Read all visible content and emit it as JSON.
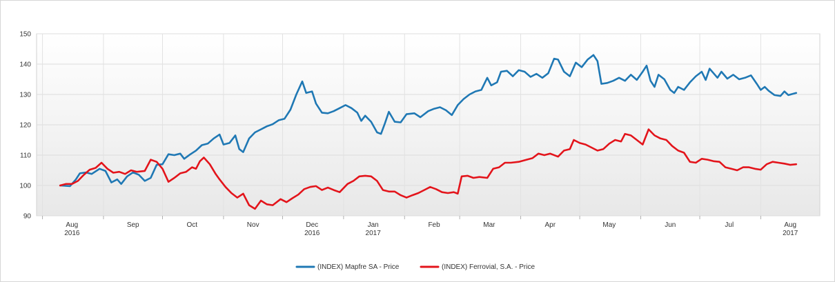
{
  "chart_data": {
    "type": "line",
    "title": "",
    "xlabel": "",
    "ylabel": "",
    "ylim": [
      90,
      150
    ],
    "y_ticks": [
      90,
      100,
      110,
      120,
      130,
      140,
      150
    ],
    "x_range": [
      "2016-07-29",
      "2017-08-31"
    ],
    "x_ticks": [
      {
        "date": "2016-08-01",
        "label": "Aug",
        "sublabel": "2016"
      },
      {
        "date": "2016-09-01",
        "label": "Sep",
        "sublabel": ""
      },
      {
        "date": "2016-10-01",
        "label": "Oct",
        "sublabel": ""
      },
      {
        "date": "2016-11-01",
        "label": "Nov",
        "sublabel": ""
      },
      {
        "date": "2016-12-01",
        "label": "Dec",
        "sublabel": "2016"
      },
      {
        "date": "2017-01-01",
        "label": "Jan",
        "sublabel": "2017"
      },
      {
        "date": "2017-02-01",
        "label": "Feb",
        "sublabel": ""
      },
      {
        "date": "2017-03-01",
        "label": "Mar",
        "sublabel": ""
      },
      {
        "date": "2017-04-01",
        "label": "Apr",
        "sublabel": ""
      },
      {
        "date": "2017-05-01",
        "label": "May",
        "sublabel": ""
      },
      {
        "date": "2017-06-01",
        "label": "Jun",
        "sublabel": ""
      },
      {
        "date": "2017-07-01",
        "label": "Jul",
        "sublabel": ""
      },
      {
        "date": "2017-08-01",
        "label": "Aug",
        "sublabel": "2017"
      }
    ],
    "grid": true,
    "legend_position": "bottom-center",
    "series": [
      {
        "name": "(INDEX) Mapfre SA - Price",
        "color": "#1f78b4",
        "points": [
          [
            "2016-08-10",
            100
          ],
          [
            "2016-08-15",
            99.8
          ],
          [
            "2016-08-18",
            102
          ],
          [
            "2016-08-20",
            104
          ],
          [
            "2016-08-23",
            104.3
          ],
          [
            "2016-08-26",
            103.8
          ],
          [
            "2016-08-30",
            105.5
          ],
          [
            "2016-09-02",
            104.8
          ],
          [
            "2016-09-05",
            101
          ],
          [
            "2016-09-08",
            102
          ],
          [
            "2016-09-10",
            100.5
          ],
          [
            "2016-09-13",
            103
          ],
          [
            "2016-09-16",
            104.3
          ],
          [
            "2016-09-19",
            103.5
          ],
          [
            "2016-09-22",
            101.5
          ],
          [
            "2016-09-25",
            102.5
          ],
          [
            "2016-09-28",
            106.8
          ],
          [
            "2016-10-01",
            107
          ],
          [
            "2016-10-04",
            110.3
          ],
          [
            "2016-10-07",
            110
          ],
          [
            "2016-10-10",
            110.5
          ],
          [
            "2016-10-12",
            108.8
          ],
          [
            "2016-10-15",
            110.2
          ],
          [
            "2016-10-18",
            111.5
          ],
          [
            "2016-10-21",
            113.3
          ],
          [
            "2016-10-24",
            113.8
          ],
          [
            "2016-10-27",
            115.5
          ],
          [
            "2016-10-30",
            116.8
          ],
          [
            "2016-11-01",
            113.5
          ],
          [
            "2016-11-04",
            114
          ],
          [
            "2016-11-07",
            116.5
          ],
          [
            "2016-11-09",
            112
          ],
          [
            "2016-11-11",
            111
          ],
          [
            "2016-11-14",
            115.5
          ],
          [
            "2016-11-17",
            117.5
          ],
          [
            "2016-11-20",
            118.5
          ],
          [
            "2016-11-23",
            119.5
          ],
          [
            "2016-11-26",
            120.2
          ],
          [
            "2016-11-29",
            121.5
          ],
          [
            "2016-12-02",
            122
          ],
          [
            "2016-12-05",
            125
          ],
          [
            "2016-12-08",
            130
          ],
          [
            "2016-12-11",
            134.3
          ],
          [
            "2016-12-13",
            130.5
          ],
          [
            "2016-12-16",
            131
          ],
          [
            "2016-12-18",
            127
          ],
          [
            "2016-12-21",
            124
          ],
          [
            "2016-12-24",
            123.8
          ],
          [
            "2016-12-27",
            124.5
          ],
          [
            "2016-12-30",
            125.5
          ],
          [
            "2017-01-02",
            126.5
          ],
          [
            "2017-01-05",
            125.5
          ],
          [
            "2017-01-08",
            124
          ],
          [
            "2017-01-10",
            121.3
          ],
          [
            "2017-01-12",
            123
          ],
          [
            "2017-01-15",
            121
          ],
          [
            "2017-01-18",
            117.5
          ],
          [
            "2017-01-20",
            117
          ],
          [
            "2017-01-22",
            120.5
          ],
          [
            "2017-01-24",
            124.3
          ],
          [
            "2017-01-27",
            121
          ],
          [
            "2017-01-30",
            120.8
          ],
          [
            "2017-02-02",
            123.5
          ],
          [
            "2017-02-06",
            123.8
          ],
          [
            "2017-02-09",
            122.5
          ],
          [
            "2017-02-13",
            124.5
          ],
          [
            "2017-02-16",
            125.3
          ],
          [
            "2017-02-19",
            125.8
          ],
          [
            "2017-02-22",
            124.8
          ],
          [
            "2017-02-25",
            123.2
          ],
          [
            "2017-02-28",
            126.5
          ],
          [
            "2017-03-03",
            128.5
          ],
          [
            "2017-03-06",
            130
          ],
          [
            "2017-03-09",
            131
          ],
          [
            "2017-03-12",
            131.5
          ],
          [
            "2017-03-15",
            135.5
          ],
          [
            "2017-03-17",
            133
          ],
          [
            "2017-03-20",
            134
          ],
          [
            "2017-03-22",
            137.5
          ],
          [
            "2017-03-25",
            137.8
          ],
          [
            "2017-03-28",
            136
          ],
          [
            "2017-03-31",
            138
          ],
          [
            "2017-04-03",
            137.5
          ],
          [
            "2017-04-06",
            135.8
          ],
          [
            "2017-04-09",
            136.8
          ],
          [
            "2017-04-12",
            135.5
          ],
          [
            "2017-04-15",
            137
          ],
          [
            "2017-04-18",
            141.8
          ],
          [
            "2017-04-20",
            141.5
          ],
          [
            "2017-04-23",
            137.5
          ],
          [
            "2017-04-26",
            136
          ],
          [
            "2017-04-29",
            140.5
          ],
          [
            "2017-05-02",
            139
          ],
          [
            "2017-05-05",
            141.5
          ],
          [
            "2017-05-08",
            143
          ],
          [
            "2017-05-10",
            141
          ],
          [
            "2017-05-12",
            133.5
          ],
          [
            "2017-05-15",
            133.8
          ],
          [
            "2017-05-18",
            134.5
          ],
          [
            "2017-05-21",
            135.5
          ],
          [
            "2017-05-24",
            134.5
          ],
          [
            "2017-05-27",
            136.5
          ],
          [
            "2017-05-30",
            134.8
          ],
          [
            "2017-06-02",
            137.5
          ],
          [
            "2017-06-04",
            139.5
          ],
          [
            "2017-06-06",
            134.5
          ],
          [
            "2017-06-08",
            132.5
          ],
          [
            "2017-06-10",
            136.5
          ],
          [
            "2017-06-13",
            135
          ],
          [
            "2017-06-16",
            131.5
          ],
          [
            "2017-06-18",
            130.5
          ],
          [
            "2017-06-20",
            132.5
          ],
          [
            "2017-06-23",
            131.5
          ],
          [
            "2017-06-26",
            134
          ],
          [
            "2017-06-29",
            136
          ],
          [
            "2017-07-02",
            137.5
          ],
          [
            "2017-07-04",
            134.8
          ],
          [
            "2017-07-06",
            138.5
          ],
          [
            "2017-07-08",
            137
          ],
          [
            "2017-07-10",
            135.5
          ],
          [
            "2017-07-12",
            137.5
          ],
          [
            "2017-07-15",
            135.2
          ],
          [
            "2017-07-18",
            136.5
          ],
          [
            "2017-07-21",
            135
          ],
          [
            "2017-07-24",
            135.5
          ],
          [
            "2017-07-27",
            136.3
          ],
          [
            "2017-07-30",
            133.5
          ],
          [
            "2017-08-01",
            131.5
          ],
          [
            "2017-08-03",
            132.5
          ],
          [
            "2017-08-05",
            131.2
          ],
          [
            "2017-08-08",
            129.8
          ],
          [
            "2017-08-11",
            129.5
          ],
          [
            "2017-08-13",
            131
          ],
          [
            "2017-08-15",
            129.8
          ],
          [
            "2017-08-19",
            130.5
          ]
        ]
      },
      {
        "name": "(INDEX) Ferrovial, S.A. - Price",
        "color": "#e3141b",
        "points": [
          [
            "2016-08-10",
            100
          ],
          [
            "2016-08-13",
            100.5
          ],
          [
            "2016-08-16",
            100.5
          ],
          [
            "2016-08-19",
            101.5
          ],
          [
            "2016-08-22",
            103.5
          ],
          [
            "2016-08-25",
            105.2
          ],
          [
            "2016-08-28",
            105.8
          ],
          [
            "2016-08-31",
            107.5
          ],
          [
            "2016-09-03",
            105.5
          ],
          [
            "2016-09-06",
            104.2
          ],
          [
            "2016-09-09",
            104.5
          ],
          [
            "2016-09-12",
            103.8
          ],
          [
            "2016-09-15",
            105
          ],
          [
            "2016-09-18",
            104.5
          ],
          [
            "2016-09-22",
            104.8
          ],
          [
            "2016-09-25",
            108.5
          ],
          [
            "2016-09-28",
            107.8
          ],
          [
            "2016-10-01",
            105.5
          ],
          [
            "2016-10-04",
            101.2
          ],
          [
            "2016-10-07",
            102.5
          ],
          [
            "2016-10-10",
            104
          ],
          [
            "2016-10-13",
            104.5
          ],
          [
            "2016-10-16",
            106
          ],
          [
            "2016-10-18",
            105.5
          ],
          [
            "2016-10-20",
            108
          ],
          [
            "2016-10-22",
            109.2
          ],
          [
            "2016-10-25",
            107
          ],
          [
            "2016-10-28",
            103.8
          ],
          [
            "2016-10-30",
            102
          ],
          [
            "2016-11-02",
            99.5
          ],
          [
            "2016-11-05",
            97.5
          ],
          [
            "2016-11-08",
            96
          ],
          [
            "2016-11-11",
            97.3
          ],
          [
            "2016-11-14",
            93.5
          ],
          [
            "2016-11-17",
            92.3
          ],
          [
            "2016-11-20",
            95
          ],
          [
            "2016-11-23",
            93.8
          ],
          [
            "2016-11-26",
            93.5
          ],
          [
            "2016-11-30",
            95.5
          ],
          [
            "2016-12-03",
            94.5
          ],
          [
            "2016-12-06",
            95.8
          ],
          [
            "2016-12-09",
            97
          ],
          [
            "2016-12-12",
            98.8
          ],
          [
            "2016-12-15",
            99.5
          ],
          [
            "2016-12-18",
            99.8
          ],
          [
            "2016-12-21",
            98.5
          ],
          [
            "2016-12-24",
            99.3
          ],
          [
            "2016-12-27",
            98.5
          ],
          [
            "2016-12-30",
            97.8
          ],
          [
            "2017-01-03",
            100.5
          ],
          [
            "2017-01-06",
            101.5
          ],
          [
            "2017-01-09",
            103
          ],
          [
            "2017-01-12",
            103.2
          ],
          [
            "2017-01-15",
            103
          ],
          [
            "2017-01-18",
            101.5
          ],
          [
            "2017-01-21",
            98.5
          ],
          [
            "2017-01-24",
            98
          ],
          [
            "2017-01-27",
            98
          ],
          [
            "2017-01-30",
            96.8
          ],
          [
            "2017-02-02",
            96
          ],
          [
            "2017-02-05",
            96.8
          ],
          [
            "2017-02-08",
            97.5
          ],
          [
            "2017-02-11",
            98.5
          ],
          [
            "2017-02-14",
            99.5
          ],
          [
            "2017-02-17",
            98.8
          ],
          [
            "2017-02-20",
            97.8
          ],
          [
            "2017-02-23",
            97.5
          ],
          [
            "2017-02-26",
            97.8
          ],
          [
            "2017-02-28",
            97.3
          ],
          [
            "2017-03-02",
            103
          ],
          [
            "2017-03-05",
            103.2
          ],
          [
            "2017-03-08",
            102.5
          ],
          [
            "2017-03-11",
            102.8
          ],
          [
            "2017-03-15",
            102.5
          ],
          [
            "2017-03-18",
            105.5
          ],
          [
            "2017-03-21",
            106
          ],
          [
            "2017-03-24",
            107.5
          ],
          [
            "2017-03-27",
            107.5
          ],
          [
            "2017-03-31",
            107.8
          ],
          [
            "2017-04-04",
            108.5
          ],
          [
            "2017-04-07",
            109
          ],
          [
            "2017-04-10",
            110.5
          ],
          [
            "2017-04-13",
            110
          ],
          [
            "2017-04-16",
            110.5
          ],
          [
            "2017-04-20",
            109.5
          ],
          [
            "2017-04-23",
            111.5
          ],
          [
            "2017-04-26",
            112
          ],
          [
            "2017-04-28",
            115
          ],
          [
            "2017-05-01",
            114
          ],
          [
            "2017-05-04",
            113.5
          ],
          [
            "2017-05-07",
            112.5
          ],
          [
            "2017-05-10",
            111.5
          ],
          [
            "2017-05-13",
            112
          ],
          [
            "2017-05-16",
            113.8
          ],
          [
            "2017-05-19",
            115
          ],
          [
            "2017-05-22",
            114.5
          ],
          [
            "2017-05-24",
            117
          ],
          [
            "2017-05-27",
            116.5
          ],
          [
            "2017-05-30",
            115
          ],
          [
            "2017-06-02",
            113.5
          ],
          [
            "2017-06-05",
            118.5
          ],
          [
            "2017-06-08",
            116.5
          ],
          [
            "2017-06-11",
            115.5
          ],
          [
            "2017-06-14",
            115
          ],
          [
            "2017-06-17",
            113
          ],
          [
            "2017-06-20",
            111.5
          ],
          [
            "2017-06-23",
            110.8
          ],
          [
            "2017-06-26",
            107.8
          ],
          [
            "2017-06-29",
            107.5
          ],
          [
            "2017-07-02",
            108.8
          ],
          [
            "2017-07-05",
            108.5
          ],
          [
            "2017-07-08",
            108
          ],
          [
            "2017-07-11",
            107.8
          ],
          [
            "2017-07-14",
            106
          ],
          [
            "2017-07-17",
            105.5
          ],
          [
            "2017-07-20",
            105
          ],
          [
            "2017-07-23",
            106
          ],
          [
            "2017-07-26",
            106
          ],
          [
            "2017-07-29",
            105.5
          ],
          [
            "2017-08-01",
            105.2
          ],
          [
            "2017-08-04",
            107
          ],
          [
            "2017-08-07",
            107.8
          ],
          [
            "2017-08-10",
            107.5
          ],
          [
            "2017-08-13",
            107.2
          ],
          [
            "2017-08-16",
            106.8
          ],
          [
            "2017-08-19",
            107
          ]
        ]
      }
    ]
  }
}
